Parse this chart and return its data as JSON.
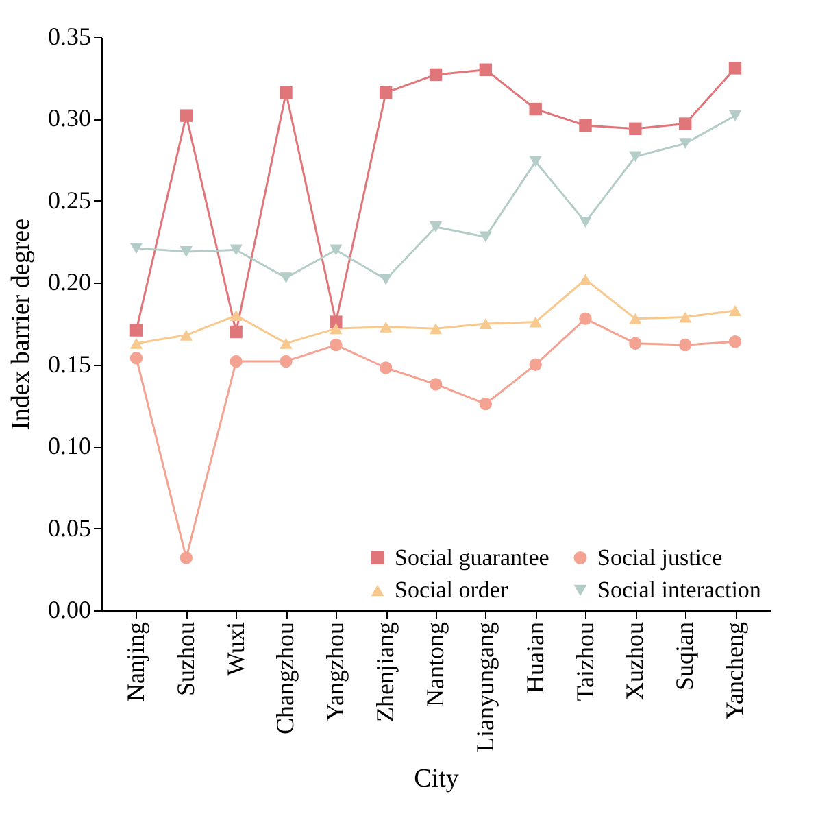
{
  "chart_data": {
    "type": "line",
    "xlabel": "City",
    "ylabel": "Index barrier degree",
    "categories": [
      "Nanjing",
      "Suzhou",
      "Wuxi",
      "Changzhou",
      "Yangzhou",
      "Zhenjiang",
      "Nantong",
      "Lianyungang",
      "Huaian",
      "Taizhou",
      "Xuzhou",
      "Suqian",
      "Yancheng"
    ],
    "series": [
      {
        "name": "Social guarantee",
        "color": "#e0767a",
        "marker": "square",
        "values": [
          0.171,
          0.302,
          0.17,
          0.316,
          0.176,
          0.316,
          0.327,
          0.33,
          0.306,
          0.296,
          0.294,
          0.297,
          0.331
        ]
      },
      {
        "name": "Social justice",
        "color": "#f4a292",
        "marker": "circle",
        "values": [
          0.154,
          0.032,
          0.152,
          0.152,
          0.162,
          0.148,
          0.138,
          0.126,
          0.15,
          0.178,
          0.163,
          0.162,
          0.164
        ]
      },
      {
        "name": "Social order",
        "color": "#f8c98f",
        "marker": "triangle-up",
        "values": [
          0.163,
          0.168,
          0.18,
          0.163,
          0.172,
          0.173,
          0.172,
          0.175,
          0.176,
          0.202,
          0.178,
          0.179,
          0.183
        ]
      },
      {
        "name": "Social interaction",
        "color": "#b5cdc8",
        "marker": "triangle-down",
        "values": [
          0.221,
          0.219,
          0.22,
          0.203,
          0.22,
          0.202,
          0.234,
          0.228,
          0.274,
          0.237,
          0.277,
          0.285,
          0.302
        ]
      }
    ],
    "ylim": [
      0,
      0.35
    ],
    "yticks": [
      {
        "value": 0,
        "label": "0.00"
      },
      0.05,
      {
        "value": 0.1,
        "label": "0.10"
      },
      0.15,
      {
        "value": 0.2,
        "label": "0.20"
      },
      0.25,
      {
        "value": 0.3,
        "label": "0.30"
      },
      0.35
    ],
    "grid": false,
    "legend": "bottom right",
    "line_style": "solid"
  }
}
